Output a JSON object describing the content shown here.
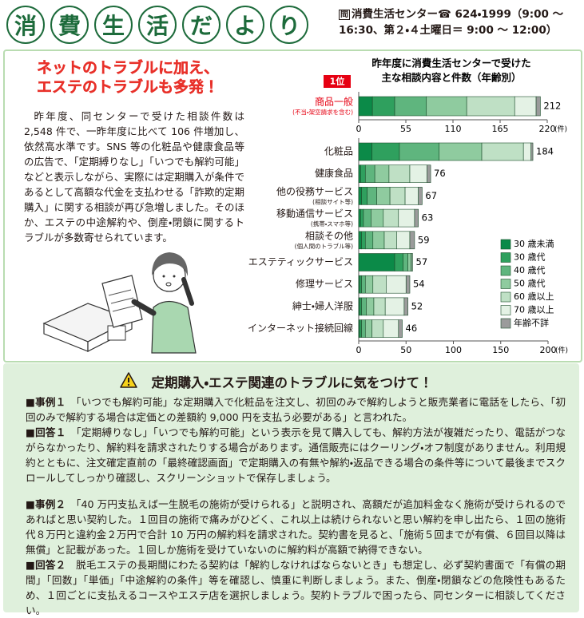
{
  "header": {
    "title_chars": [
      "消",
      "費",
      "生",
      "活",
      "だ",
      "よ",
      "り"
    ],
    "contact_mark": "問",
    "contact": "消費生活センター☎ 624・1999（9:00 ～ 16:30、第２・４土曜日＝ 9:00 ～ 12:00）"
  },
  "headline": [
    "ネットのトラブルに加え、",
    "エステのトラブルも多発！"
  ],
  "lead": "昨年度、同センターで受けた相談件数は 2,548 件で、一昨年度に比べて 106 件増加し、依然高水準です。SNS 等の化粧品や健康食品等の広告で、「定期縛りなし」「いつでも解約可能」などと表示しながら、実際には定期購入が条件であるとして高額な代金を支払わせる「詐欺的定期購入」に関する相談が再び急増しました。そのほか、エステの中途解約や、倒産・閉鎖に関するトラブルが多数寄せられています。",
  "chart_data": [
    {
      "type": "stacked-bar",
      "orientation": "horizontal",
      "title": [
        "昨年度に消費生活センターで受けた",
        "主な相談内容と件数（年齢別）"
      ],
      "rank_badge": "1位",
      "highlight_color": "#e60012",
      "categories": [
        "商品一般"
      ],
      "notes": [
        "(不当・架空請求を含む)"
      ],
      "totals": [
        212
      ],
      "series": [
        {
          "color": "#0b8a48",
          "values": [
            16
          ]
        },
        {
          "color": "#2fa05e",
          "values": [
            26
          ]
        },
        {
          "color": "#5fb57e",
          "values": [
            37
          ]
        },
        {
          "color": "#8fcb9f",
          "values": [
            47
          ]
        },
        {
          "color": "#bfe0c5",
          "values": [
            56
          ]
        },
        {
          "color": "#e4f2e5",
          "values": [
            25
          ]
        },
        {
          "color": "#9b9b9b",
          "values": [
            5
          ]
        }
      ],
      "xlim": [
        0,
        220
      ],
      "xticks": [
        0,
        55,
        110,
        165,
        220
      ],
      "unit": "(件)"
    },
    {
      "type": "stacked-bar",
      "orientation": "horizontal",
      "categories": [
        "化粧品",
        "健康食品",
        "他の役務サービス",
        "移動通信サービス",
        "相談その他",
        "エステティックサービス",
        "修理サービス",
        "紳士・婦人洋服",
        "インターネット接続回線"
      ],
      "notes": [
        null,
        null,
        "(相談サイト等)",
        "(携帯・スマホ等)",
        "(個人間のトラブル等)",
        null,
        null,
        null,
        null
      ],
      "totals": [
        184,
        76,
        67,
        63,
        59,
        57,
        54,
        52,
        46
      ],
      "series": [
        {
          "name": "30 歳未満",
          "color": "#0b8a48",
          "values": [
            14,
            2,
            3,
            2,
            3,
            38,
            1,
            1,
            1
          ]
        },
        {
          "name": "30 歳代",
          "color": "#2fa05e",
          "values": [
            29,
            5,
            6,
            3,
            4,
            9,
            2,
            2,
            2
          ]
        },
        {
          "name": "40 歳代",
          "color": "#5fb57e",
          "values": [
            42,
            10,
            10,
            8,
            8,
            5,
            4,
            5,
            4
          ]
        },
        {
          "name": "50 歳代",
          "color": "#8fcb9f",
          "values": [
            45,
            15,
            14,
            13,
            12,
            3,
            8,
            8,
            7
          ]
        },
        {
          "name": "60 歳以上",
          "color": "#bfe0c5",
          "values": [
            44,
            22,
            16,
            16,
            13,
            1,
            14,
            12,
            12
          ]
        },
        {
          "name": "70 歳以上",
          "color": "#e4f2e5",
          "values": [
            8,
            18,
            14,
            17,
            14,
            1,
            21,
            20,
            16
          ]
        },
        {
          "name": "年齢不詳",
          "color": "#9b9b9b",
          "values": [
            2,
            4,
            4,
            4,
            5,
            0,
            4,
            4,
            4
          ]
        }
      ],
      "xlim": [
        0,
        200
      ],
      "xticks": [
        0,
        50,
        100,
        150,
        200
      ],
      "unit": "(件)"
    }
  ],
  "notice": {
    "title": "定期購入・エステ関連のトラブルに気をつけて！",
    "items": [
      {
        "label": "■事例１",
        "text": "「いつでも解約可能」な定期購入で化粧品を注文し、初回のみで解約しようと販売業者に電話をしたら、「初回のみで解約する場合は定価との差額約 9,000 円を支払う必要がある」と言われた。"
      },
      {
        "label": "■回答１",
        "text": "「定期縛りなし」「いつでも解約可能」という表示を見て購入しても、解約方法が複雑だったり、電話がつながらなかったり、解約料を請求されたりする場合があります。通信販売にはクーリング・オフ制度がありません。利用規約とともに、注文確定直前の「最終確認画面」で定期購入の有無や解約・返品できる場合の条件等について最後までスクロールしてしっかり確認し、スクリーンショットで保存しましょう。"
      },
      {
        "label": "■事例２",
        "text": "「40 万円支払えば一生脱毛の施術が受けられる」と説明され、高額だが追加料金なく施術が受けられるのであればと思い契約した。１回目の施術で痛みがひどく、これ以上は続けられないと思い解約を申し出たら、１回の施術代８万円と違約金２万円で合計 10 万円の解約料を請求された。契約書を見ると、「施術５回までが有償、６回目以降は無償」と記載があった。１回しか施術を受けていないのに解約料が高額で納得できない。"
      },
      {
        "label": "■回答２",
        "text": "脱毛エステの長期間にわたる契約は「解約しなければならないとき」も想定し、必ず契約書面で「有償の期間」「回数」「単価」「中途解約の条件」等を確認し、慎重に判断しましょう。また、倒産・閉鎖などの危険性もあるため、１回ごとに支払えるコースやエステ店を選択しましょう。契約トラブルで困ったら、同センターに相談してください。"
      }
    ]
  }
}
